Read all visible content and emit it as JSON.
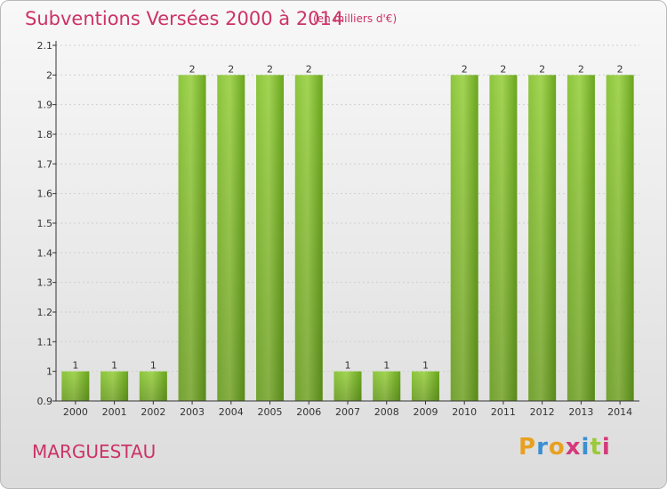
{
  "header": {
    "title": "Subventions Versées 2000 à 2014",
    "unit": "(en milliers d'€)"
  },
  "footer": {
    "commune": "MARGUESTAU",
    "logo_letters": [
      "P",
      "r",
      "o",
      "x",
      "i",
      "t",
      "i"
    ],
    "logo_colors": [
      "#e8a020",
      "#3b8fd0",
      "#e8a020",
      "#d43a7a",
      "#3b8fd0",
      "#9bc93a",
      "#d43a7a"
    ]
  },
  "colors": {
    "title": "#cc3366",
    "bar_light": "#9ccf4a",
    "bar_dark": "#5e9a14",
    "axis": "#333333",
    "grid": "#cfcfcf"
  },
  "chart_data": {
    "type": "bar",
    "title": "Subventions Versées 2000 à 2014",
    "ylabel": "",
    "xlabel": "",
    "categories": [
      "2000",
      "2001",
      "2002",
      "2003",
      "2004",
      "2005",
      "2006",
      "2007",
      "2008",
      "2009",
      "2010",
      "2011",
      "2012",
      "2013",
      "2014"
    ],
    "values": [
      1,
      1,
      1,
      2,
      2,
      2,
      2,
      1,
      1,
      1,
      2,
      2,
      2,
      2,
      2
    ],
    "bar_labels": [
      "1",
      "1",
      "1",
      "2",
      "2",
      "2",
      "2",
      "1",
      "1",
      "1",
      "2",
      "2",
      "2",
      "2",
      "2"
    ],
    "ylim": [
      0.9,
      2.1
    ],
    "yticks": [
      "2.1",
      "2",
      "1.9",
      "1.8",
      "1.7",
      "1.6",
      "1.5",
      "1.4",
      "1.3",
      "1.2",
      "1.1",
      "1",
      "0.9"
    ],
    "grid": true
  }
}
